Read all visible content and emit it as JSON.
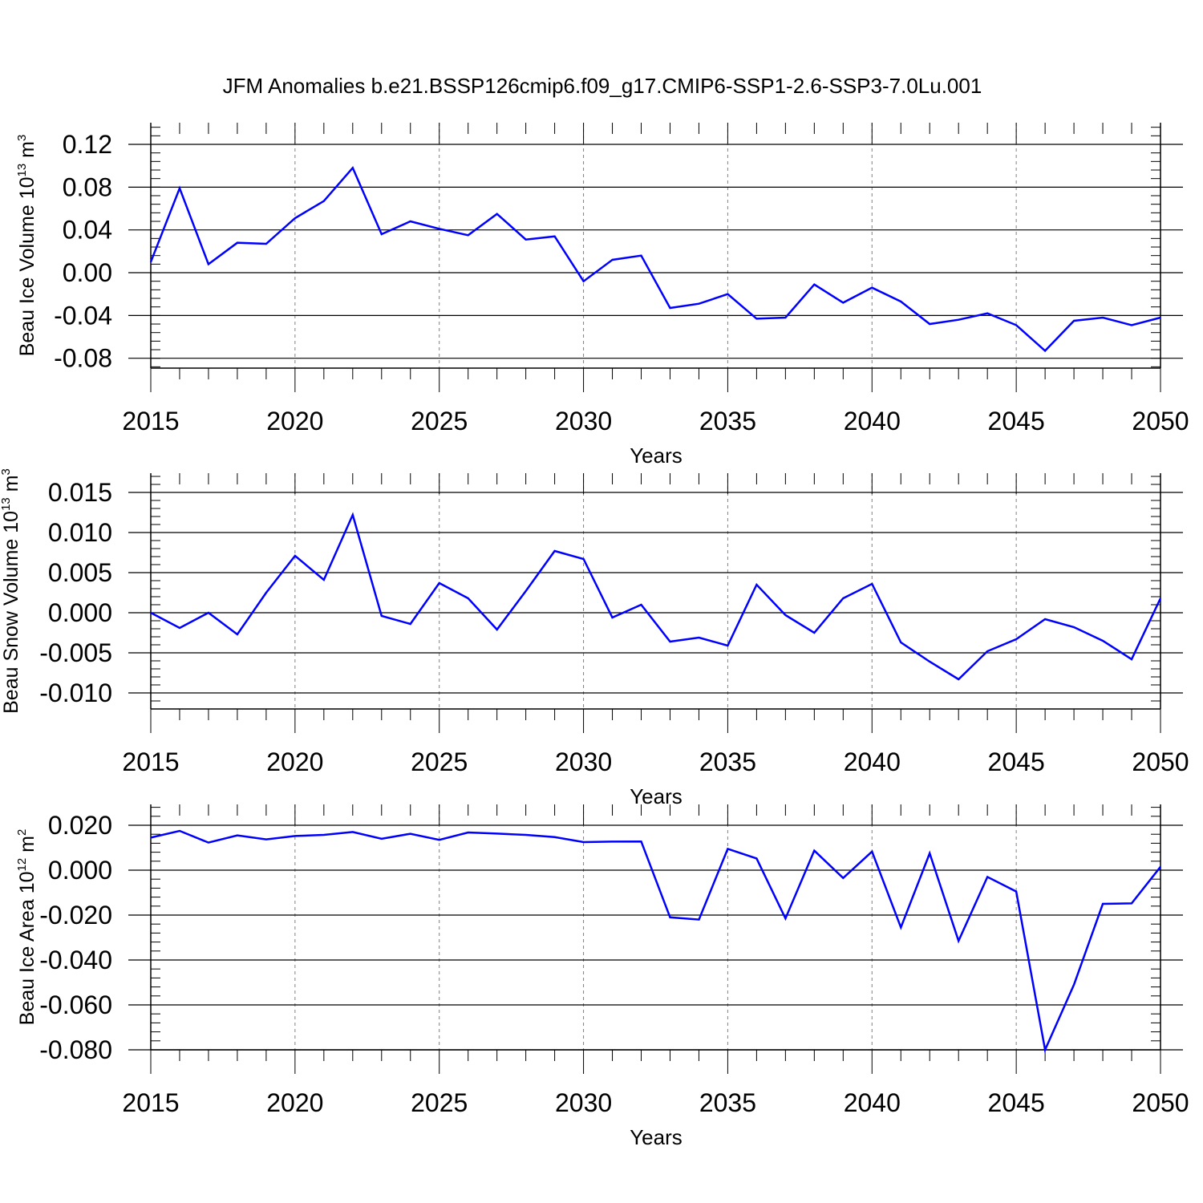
{
  "title": "JFM Anomalies b.e21.BSSP126cmip6.f09_g17.CMIP6-SSP1-2.6-SSP3-7.0Lu.001",
  "colors": {
    "line": "#0000ff",
    "axis": "#000000",
    "grid": "#808080"
  },
  "chart_data": [
    {
      "type": "line",
      "xlabel": "Years",
      "ylabel_main": "Beau Ice Volume 10",
      "ylabel_exp": "13",
      "ylabel_unit": " m",
      "ylabel_unit_exp": "3",
      "xlim": [
        2015,
        2050
      ],
      "ylim": [
        -0.09,
        0.125
      ],
      "xticks": [
        2015,
        2020,
        2025,
        2030,
        2035,
        2040,
        2045,
        2050
      ],
      "xtick_labels": [
        "2015",
        "2020",
        "2025",
        "2030",
        "2035",
        "2040",
        "2045",
        "2050"
      ],
      "yticks": [
        0.12,
        0.08,
        0.04,
        0.0,
        -0.04,
        -0.08
      ],
      "ytick_labels": [
        "0.12",
        "0.08",
        "0.04",
        "0.00",
        "-0.04",
        "-0.08"
      ],
      "yminor_step": 0.008,
      "vgrid": [
        2020,
        2025,
        2030,
        2035,
        2040,
        2045
      ],
      "x": [
        2015,
        2016,
        2017,
        2018,
        2019,
        2020,
        2021,
        2022,
        2023,
        2024,
        2025,
        2026,
        2027,
        2028,
        2029,
        2030,
        2031,
        2032,
        2033,
        2034,
        2035,
        2036,
        2037,
        2038,
        2039,
        2040,
        2041,
        2042,
        2043,
        2044,
        2045,
        2046,
        2047,
        2048,
        2049,
        2050
      ],
      "y": [
        0.01,
        0.079,
        0.008,
        0.028,
        0.027,
        0.051,
        0.067,
        0.098,
        0.036,
        0.048,
        0.041,
        0.035,
        0.055,
        0.031,
        0.034,
        -0.008,
        0.012,
        0.016,
        -0.033,
        -0.029,
        -0.02,
        -0.043,
        -0.042,
        -0.011,
        -0.028,
        -0.014,
        -0.027,
        -0.048,
        -0.044,
        -0.038,
        -0.049,
        -0.073,
        -0.045,
        -0.042,
        -0.049,
        -0.042
      ]
    },
    {
      "type": "line",
      "xlabel": "Years",
      "ylabel_main": "Beau Snow Volume 10",
      "ylabel_exp": "13",
      "ylabel_unit": " m",
      "ylabel_unit_exp": "3",
      "xlim": [
        2015,
        2050
      ],
      "ylim": [
        -0.012,
        0.016
      ],
      "xticks": [
        2015,
        2020,
        2025,
        2030,
        2035,
        2040,
        2045,
        2050
      ],
      "xtick_labels": [
        "2015",
        "2020",
        "2025",
        "2030",
        "2035",
        "2040",
        "2045",
        "2050"
      ],
      "yticks": [
        0.015,
        0.01,
        0.005,
        0.0,
        -0.005,
        -0.01
      ],
      "ytick_labels": [
        "0.015",
        "0.010",
        "0.005",
        "0.000",
        "-0.005",
        "-0.010"
      ],
      "yminor_step": 0.001,
      "vgrid": [
        2020,
        2025,
        2030,
        2035,
        2040,
        2045
      ],
      "x": [
        2015,
        2016,
        2017,
        2018,
        2019,
        2020,
        2021,
        2022,
        2023,
        2024,
        2025,
        2026,
        2027,
        2028,
        2029,
        2030,
        2031,
        2032,
        2033,
        2034,
        2035,
        2036,
        2037,
        2038,
        2039,
        2040,
        2041,
        2042,
        2043,
        2044,
        2045,
        2046,
        2047,
        2048,
        2049,
        2050
      ],
      "y": [
        0.0,
        -0.0019,
        0.0,
        -0.0027,
        0.0025,
        0.0071,
        0.0041,
        0.0122,
        -0.0004,
        -0.0014,
        0.0037,
        0.0018,
        -0.0021,
        0.0027,
        0.0077,
        0.0067,
        -0.0006,
        0.001,
        -0.0036,
        -0.0031,
        -0.0041,
        0.0035,
        -0.0003,
        -0.0025,
        0.0018,
        0.0036,
        -0.0037,
        -0.0061,
        -0.0083,
        -0.0048,
        -0.0033,
        -0.0008,
        -0.0018,
        -0.0035,
        -0.0058,
        0.0018
      ]
    },
    {
      "type": "line",
      "xlabel": "Years",
      "ylabel_main": "Beau Ice Area 10",
      "ylabel_exp": "12",
      "ylabel_unit": " m",
      "ylabel_unit_exp": "2",
      "xlim": [
        2015,
        2050
      ],
      "ylim": [
        -0.08,
        0.02
      ],
      "xticks": [
        2015,
        2020,
        2025,
        2030,
        2035,
        2040,
        2045,
        2050
      ],
      "xtick_labels": [
        "2015",
        "2020",
        "2025",
        "2030",
        "2035",
        "2040",
        "2045",
        "2050"
      ],
      "yticks": [
        0.02,
        0.0,
        -0.02,
        -0.04,
        -0.06,
        -0.08
      ],
      "ytick_labels": [
        "0.020",
        "0.000",
        "-0.020",
        "-0.040",
        "-0.060",
        "-0.080"
      ],
      "yminor_step": 0.004,
      "vgrid": [
        2020,
        2025,
        2030,
        2035,
        2040,
        2045
      ],
      "x": [
        2015,
        2016,
        2017,
        2018,
        2019,
        2020,
        2021,
        2022,
        2023,
        2024,
        2025,
        2026,
        2027,
        2028,
        2029,
        2030,
        2031,
        2032,
        2033,
        2034,
        2035,
        2036,
        2037,
        2038,
        2039,
        2040,
        2041,
        2042,
        2043,
        2044,
        2045,
        2046,
        2047,
        2048,
        2049,
        2050
      ],
      "y": [
        0.0145,
        0.0175,
        0.0123,
        0.0155,
        0.0137,
        0.0152,
        0.0157,
        0.017,
        0.014,
        0.0162,
        0.0135,
        0.0168,
        0.0163,
        0.0157,
        0.0147,
        0.0125,
        0.0127,
        0.0128,
        -0.021,
        -0.022,
        0.0095,
        0.0052,
        -0.0215,
        0.0087,
        -0.0035,
        0.0083,
        -0.0255,
        0.0075,
        -0.0315,
        -0.003,
        -0.0095,
        -0.08,
        -0.051,
        -0.015,
        -0.0148,
        0.0015
      ]
    }
  ]
}
